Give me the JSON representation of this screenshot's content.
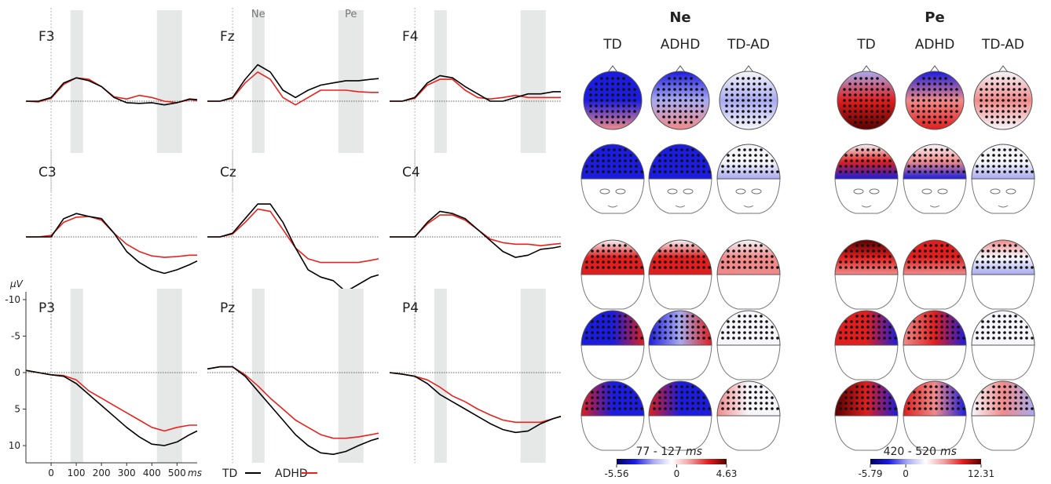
{
  "chart_data": [
    {
      "type": "line",
      "title": "F3",
      "x": [
        -100,
        -50,
        0,
        50,
        100,
        150,
        200,
        250,
        300,
        350,
        400,
        450,
        500,
        550,
        580
      ],
      "xlim": [
        -100,
        580
      ],
      "ylim": [
        -11.5,
        11.5
      ],
      "y_inverted": true,
      "shaded": [
        [
          77,
          127
        ],
        [
          420,
          520
        ]
      ],
      "series": [
        {
          "name": "TD",
          "color": "#000000",
          "values": [
            0,
            0,
            -0.5,
            -2.5,
            -3.2,
            -2.8,
            -2,
            -0.5,
            0.2,
            0.3,
            0.2,
            0.5,
            0.2,
            -0.3,
            -0.2
          ]
        },
        {
          "name": "ADHD",
          "color": "#e8231e",
          "values": [
            0,
            0.1,
            -0.4,
            -2.3,
            -3.2,
            -3,
            -2,
            -0.6,
            -0.3,
            -0.8,
            -0.5,
            0,
            0.2,
            -0.2,
            -0.1
          ]
        }
      ]
    },
    {
      "type": "line",
      "title": "Fz",
      "x": [
        -100,
        -50,
        0,
        50,
        100,
        150,
        200,
        250,
        300,
        350,
        400,
        450,
        500,
        550,
        580
      ],
      "xlim": [
        -100,
        580
      ],
      "ylim": [
        -11.5,
        11.5
      ],
      "y_inverted": true,
      "shaded": [
        [
          77,
          127
        ],
        [
          420,
          520
        ]
      ],
      "shaded_labels": [
        "Ne",
        "Pe"
      ],
      "series": [
        {
          "name": "TD",
          "color": "#000000",
          "values": [
            0,
            0,
            -0.5,
            -3,
            -5,
            -4,
            -1.5,
            -0.5,
            -1.5,
            -2.2,
            -2.5,
            -2.8,
            -2.8,
            -3,
            -3.1
          ]
        },
        {
          "name": "ADHD",
          "color": "#e8231e",
          "values": [
            0,
            0,
            -0.4,
            -2.5,
            -4,
            -3,
            -0.5,
            0.5,
            -0.5,
            -1.5,
            -1.5,
            -1.5,
            -1.3,
            -1.2,
            -1.2
          ]
        }
      ]
    },
    {
      "type": "line",
      "title": "F4",
      "x": [
        -100,
        -50,
        0,
        50,
        100,
        150,
        200,
        250,
        300,
        350,
        400,
        450,
        500,
        550,
        580
      ],
      "xlim": [
        -100,
        580
      ],
      "ylim": [
        -11.5,
        11.5
      ],
      "y_inverted": true,
      "shaded": [
        [
          77,
          127
        ],
        [
          420,
          520
        ]
      ],
      "series": [
        {
          "name": "TD",
          "color": "#000000",
          "values": [
            0,
            0,
            -0.5,
            -2.5,
            -3.5,
            -3.2,
            -2,
            -1,
            0,
            0,
            -0.5,
            -1,
            -1,
            -1.3,
            -1.3
          ]
        },
        {
          "name": "ADHD",
          "color": "#e8231e",
          "values": [
            0,
            0,
            -0.4,
            -2.2,
            -3,
            -3,
            -1.5,
            -0.5,
            -0.3,
            -0.5,
            -0.8,
            -0.5,
            -0.5,
            -0.5,
            -0.5
          ]
        }
      ]
    },
    {
      "type": "line",
      "title": "C3",
      "x": [
        -100,
        -50,
        0,
        50,
        100,
        150,
        200,
        250,
        300,
        350,
        400,
        450,
        500,
        550,
        580
      ],
      "xlim": [
        -100,
        580
      ],
      "ylim": [
        -11.5,
        11.5
      ],
      "y_inverted": true,
      "series": [
        {
          "name": "TD",
          "color": "#000000",
          "values": [
            0,
            0,
            0,
            -2.5,
            -3.2,
            -2.8,
            -2.5,
            -0.5,
            2,
            3.5,
            4.5,
            5,
            4.5,
            3.8,
            3.3
          ]
        },
        {
          "name": "ADHD",
          "color": "#e8231e",
          "values": [
            0,
            0,
            -0.2,
            -2,
            -2.7,
            -2.8,
            -2.3,
            -0.5,
            1,
            2,
            2.6,
            2.8,
            2.7,
            2.5,
            2.5
          ]
        }
      ]
    },
    {
      "type": "line",
      "title": "Cz",
      "x": [
        -100,
        -50,
        0,
        50,
        100,
        150,
        200,
        250,
        300,
        350,
        400,
        450,
        500,
        550,
        580
      ],
      "xlim": [
        -100,
        580
      ],
      "ylim": [
        -11.5,
        11.5
      ],
      "y_inverted": true,
      "series": [
        {
          "name": "TD",
          "color": "#000000",
          "values": [
            0,
            0,
            -0.5,
            -2.5,
            -4.5,
            -4.5,
            -2,
            1.5,
            4.5,
            5.5,
            6,
            7.5,
            6.5,
            5.5,
            5.2
          ]
        },
        {
          "name": "ADHD",
          "color": "#e8231e",
          "values": [
            0,
            0,
            -0.4,
            -2,
            -3.8,
            -3.5,
            -1,
            1.5,
            3,
            3.5,
            3.5,
            3.5,
            3.5,
            3.2,
            3
          ]
        }
      ]
    },
    {
      "type": "line",
      "title": "C4",
      "x": [
        -100,
        -50,
        0,
        50,
        100,
        150,
        200,
        250,
        300,
        350,
        400,
        450,
        500,
        550,
        580
      ],
      "xlim": [
        -100,
        580
      ],
      "ylim": [
        -11.5,
        11.5
      ],
      "y_inverted": true,
      "series": [
        {
          "name": "TD",
          "color": "#000000",
          "values": [
            0,
            0,
            0,
            -2,
            -3.5,
            -3.2,
            -2.5,
            -1,
            0.5,
            2,
            2.8,
            2.5,
            1.7,
            1.5,
            1.3
          ]
        },
        {
          "name": "ADHD",
          "color": "#e8231e",
          "values": [
            0,
            0,
            0,
            -1.8,
            -3,
            -3,
            -2.3,
            -1,
            0.3,
            0.8,
            1,
            1,
            1.2,
            1,
            0.9
          ]
        }
      ]
    },
    {
      "type": "line",
      "title": "P3",
      "x": [
        -100,
        -50,
        0,
        50,
        100,
        150,
        200,
        250,
        300,
        350,
        400,
        450,
        500,
        550,
        580
      ],
      "xlim": [
        -100,
        580
      ],
      "ylim": [
        -11.5,
        11.5
      ],
      "y_inverted": true,
      "shaded": [
        [
          77,
          127
        ],
        [
          420,
          520
        ]
      ],
      "yticks": [
        -10,
        -5,
        0,
        5,
        10
      ],
      "xticks": [
        0,
        100,
        200,
        300,
        400,
        500
      ],
      "y_label": "µV",
      "x_label": "ms",
      "series": [
        {
          "name": "TD",
          "color": "#000000",
          "values": [
            -0.3,
            0,
            0.3,
            0.5,
            1.5,
            3,
            4.5,
            6,
            7.5,
            8.8,
            9.8,
            10,
            9.5,
            8.5,
            8
          ]
        },
        {
          "name": "ADHD",
          "color": "#e8231e",
          "values": [
            -0.3,
            0,
            0.3,
            0.4,
            1,
            2.5,
            3.5,
            4.5,
            5.5,
            6.5,
            7.5,
            8,
            7.5,
            7.2,
            7.2
          ]
        }
      ]
    },
    {
      "type": "line",
      "title": "Pz",
      "x": [
        -100,
        -50,
        0,
        50,
        100,
        150,
        200,
        250,
        300,
        350,
        400,
        450,
        500,
        550,
        580
      ],
      "xlim": [
        -100,
        580
      ],
      "ylim": [
        -11.5,
        11.5
      ],
      "y_inverted": true,
      "shaded": [
        [
          77,
          127
        ],
        [
          420,
          520
        ]
      ],
      "series": [
        {
          "name": "TD",
          "color": "#000000",
          "values": [
            -0.5,
            -0.8,
            -0.8,
            0.5,
            2.5,
            4.5,
            6.5,
            8.5,
            10,
            11,
            11.2,
            10.8,
            10,
            9.3,
            9
          ]
        },
        {
          "name": "ADHD",
          "color": "#e8231e",
          "values": [
            -0.5,
            -0.8,
            -0.8,
            0.3,
            1.8,
            3.5,
            5,
            6.5,
            7.5,
            8.5,
            9,
            9,
            8.8,
            8.5,
            8.3
          ]
        }
      ]
    },
    {
      "type": "line",
      "title": "P4",
      "x": [
        -100,
        -50,
        0,
        50,
        100,
        150,
        200,
        250,
        300,
        350,
        400,
        450,
        500,
        550,
        580
      ],
      "xlim": [
        -100,
        580
      ],
      "ylim": [
        -11.5,
        11.5
      ],
      "y_inverted": true,
      "shaded": [
        [
          77,
          127
        ],
        [
          420,
          520
        ]
      ],
      "series": [
        {
          "name": "TD",
          "color": "#000000",
          "values": [
            0,
            0.2,
            0.5,
            1.5,
            3,
            4,
            5,
            6,
            7,
            7.8,
            8.2,
            8,
            7,
            6.3,
            6
          ]
        },
        {
          "name": "ADHD",
          "color": "#e8231e",
          "values": [
            0,
            0.2,
            0.5,
            1,
            2,
            3.2,
            4,
            5,
            5.8,
            6.5,
            6.8,
            6.8,
            6.8,
            6.3,
            6
          ]
        }
      ]
    }
  ],
  "topomaps": [
    {
      "title": "Ne",
      "columns": [
        "TD",
        "ADHD",
        "TD-AD"
      ],
      "window": "77 - 127",
      "unit": "ms",
      "clim": [
        -5.56,
        4.63
      ],
      "colorbar_ticks": [
        -5.56,
        0,
        4.63
      ]
    },
    {
      "title": "Pe",
      "columns": [
        "TD",
        "ADHD",
        "TD-AD"
      ],
      "window": "420 - 520",
      "unit": "ms",
      "clim": [
        -5.79,
        12.31
      ],
      "colorbar_ticks": [
        -5.79,
        0,
        12.31
      ]
    }
  ]
}
